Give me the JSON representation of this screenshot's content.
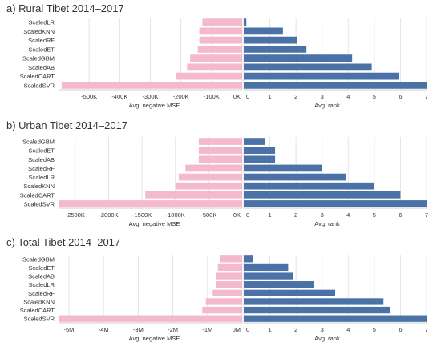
{
  "colors": {
    "negative_mse_bar": "#f4b9cd",
    "rank_bar": "#4a72a6",
    "gridline": "#e4e4e4",
    "axis": "#cfcfcf",
    "text": "#333333"
  },
  "chart_data": [
    {
      "type": "bar",
      "title": "a) Rural Tibet 2014–2017",
      "categories": [
        "ScaledLR",
        "ScaledKNN",
        "ScaledRF",
        "ScaledET",
        "ScaledGBM",
        "ScaledAB",
        "ScaledCART",
        "ScaledSVR"
      ],
      "left": {
        "xlabel": "Avg. negative MSE",
        "xlim": [
          -600000,
          0
        ],
        "ticks": [
          -500000,
          -400000,
          -300000,
          -200000,
          -100000,
          0
        ],
        "tick_labels": [
          "-500K",
          "-400K",
          "-300K",
          "-200K",
          "-100K",
          "0K"
        ],
        "values": [
          -130000,
          -140000,
          -140000,
          -145000,
          -170000,
          -180000,
          -215000,
          -590000
        ]
      },
      "right": {
        "xlabel": "Avg. rank",
        "xlim": [
          0,
          7
        ],
        "ticks": [
          0,
          1,
          2,
          3,
          4,
          5,
          6,
          7
        ],
        "tick_labels": [
          "0",
          "1",
          "2",
          "3",
          "4",
          "5",
          "6",
          "7"
        ],
        "values": [
          0.1,
          1.5,
          2.05,
          2.4,
          4.15,
          4.9,
          5.95,
          7.0
        ]
      }
    },
    {
      "type": "bar",
      "title": "b) Urban Tibet 2014–2017",
      "categories": [
        "ScaledGBM",
        "ScaledET",
        "ScaledAB",
        "ScaledRF",
        "ScaledLR",
        "ScaledKNN",
        "ScaledCART",
        "ScaledSVR"
      ],
      "left": {
        "xlabel": "Avg. negative MSE",
        "xlim": [
          -2750000,
          0
        ],
        "ticks": [
          -2500000,
          -2000000,
          -1500000,
          -1000000,
          -500000,
          0
        ],
        "tick_labels": [
          "-2500K",
          "-2000K",
          "-1500K",
          "-1000K",
          "-500K",
          "0K"
        ],
        "values": [
          -650000,
          -650000,
          -650000,
          -850000,
          -950000,
          -1000000,
          -1450000,
          -2750000
        ]
      },
      "right": {
        "xlabel": "Avg. rank",
        "xlim": [
          0,
          7
        ],
        "ticks": [
          0,
          1,
          2,
          3,
          4,
          5,
          6,
          7
        ],
        "tick_labels": [
          "0",
          "1",
          "2",
          "3",
          "4",
          "5",
          "6",
          "7"
        ],
        "values": [
          0.8,
          1.2,
          1.2,
          3.0,
          3.9,
          5.0,
          6.0,
          7.0
        ]
      }
    },
    {
      "type": "bar",
      "title": "c) Total Tibet 2014–2017",
      "categories": [
        "ScaledGBM",
        "ScaledET",
        "ScaledAB",
        "ScaledLR",
        "ScaledRF",
        "ScaledKNN",
        "ScaledCART",
        "ScaledSVR"
      ],
      "left": {
        "xlabel": "Avg. negative MSE",
        "xlim": [
          -5300000,
          0
        ],
        "ticks": [
          -5000000,
          -4000000,
          -3000000,
          -2000000,
          -1000000,
          0
        ],
        "tick_labels": [
          "-5M",
          "-4M",
          "-3M",
          "-2M",
          "-1M",
          "0M"
        ],
        "values": [
          -650000,
          -700000,
          -750000,
          -750000,
          -850000,
          -1050000,
          -1150000,
          -5300000
        ]
      },
      "right": {
        "xlabel": "Avg. rank",
        "xlim": [
          0,
          7
        ],
        "ticks": [
          0,
          1,
          2,
          3,
          4,
          5,
          6,
          7
        ],
        "tick_labels": [
          "0",
          "1",
          "2",
          "3",
          "4",
          "5",
          "6",
          "7"
        ],
        "values": [
          0.35,
          1.7,
          1.9,
          2.7,
          3.5,
          5.35,
          5.6,
          7.0
        ]
      }
    }
  ]
}
